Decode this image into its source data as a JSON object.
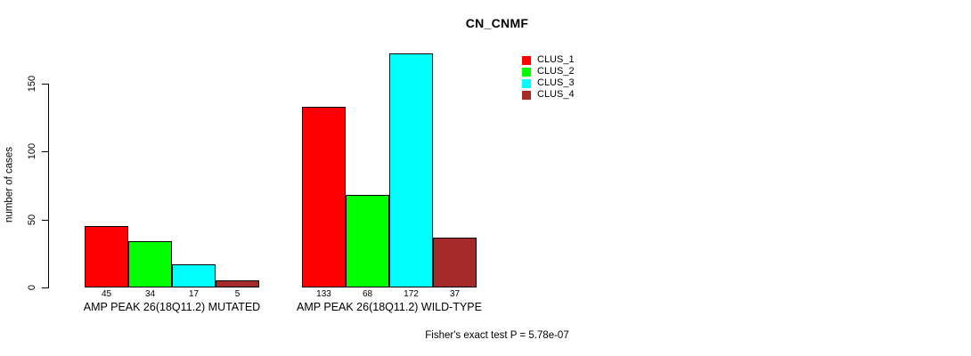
{
  "chart_data": {
    "type": "bar",
    "title": "CN_CNMF",
    "ylabel": "number of cases",
    "xlabel": "",
    "yticks": [
      0,
      50,
      100,
      150
    ],
    "ylim": [
      0,
      172
    ],
    "grid": false,
    "legend_position": "top-right",
    "series": [
      "CLUS_1",
      "CLUS_2",
      "CLUS_3",
      "CLUS_4"
    ],
    "colors": [
      "#ff0000",
      "#00ff00",
      "#00ffff",
      "#a52a2a"
    ],
    "categories": [
      "AMP PEAK 26(18Q11.2) MUTATED",
      "AMP PEAK 26(18Q11.2) WILD-TYPE"
    ],
    "groups": [
      {
        "label": "AMP PEAK 26(18Q11.2) MUTATED",
        "values": [
          45,
          34,
          17,
          5
        ]
      },
      {
        "label": "AMP PEAK 26(18Q11.2) WILD-TYPE",
        "values": [
          133,
          68,
          172,
          37
        ]
      }
    ],
    "annotation": "Fisher's exact test P = 5.78e-07"
  }
}
